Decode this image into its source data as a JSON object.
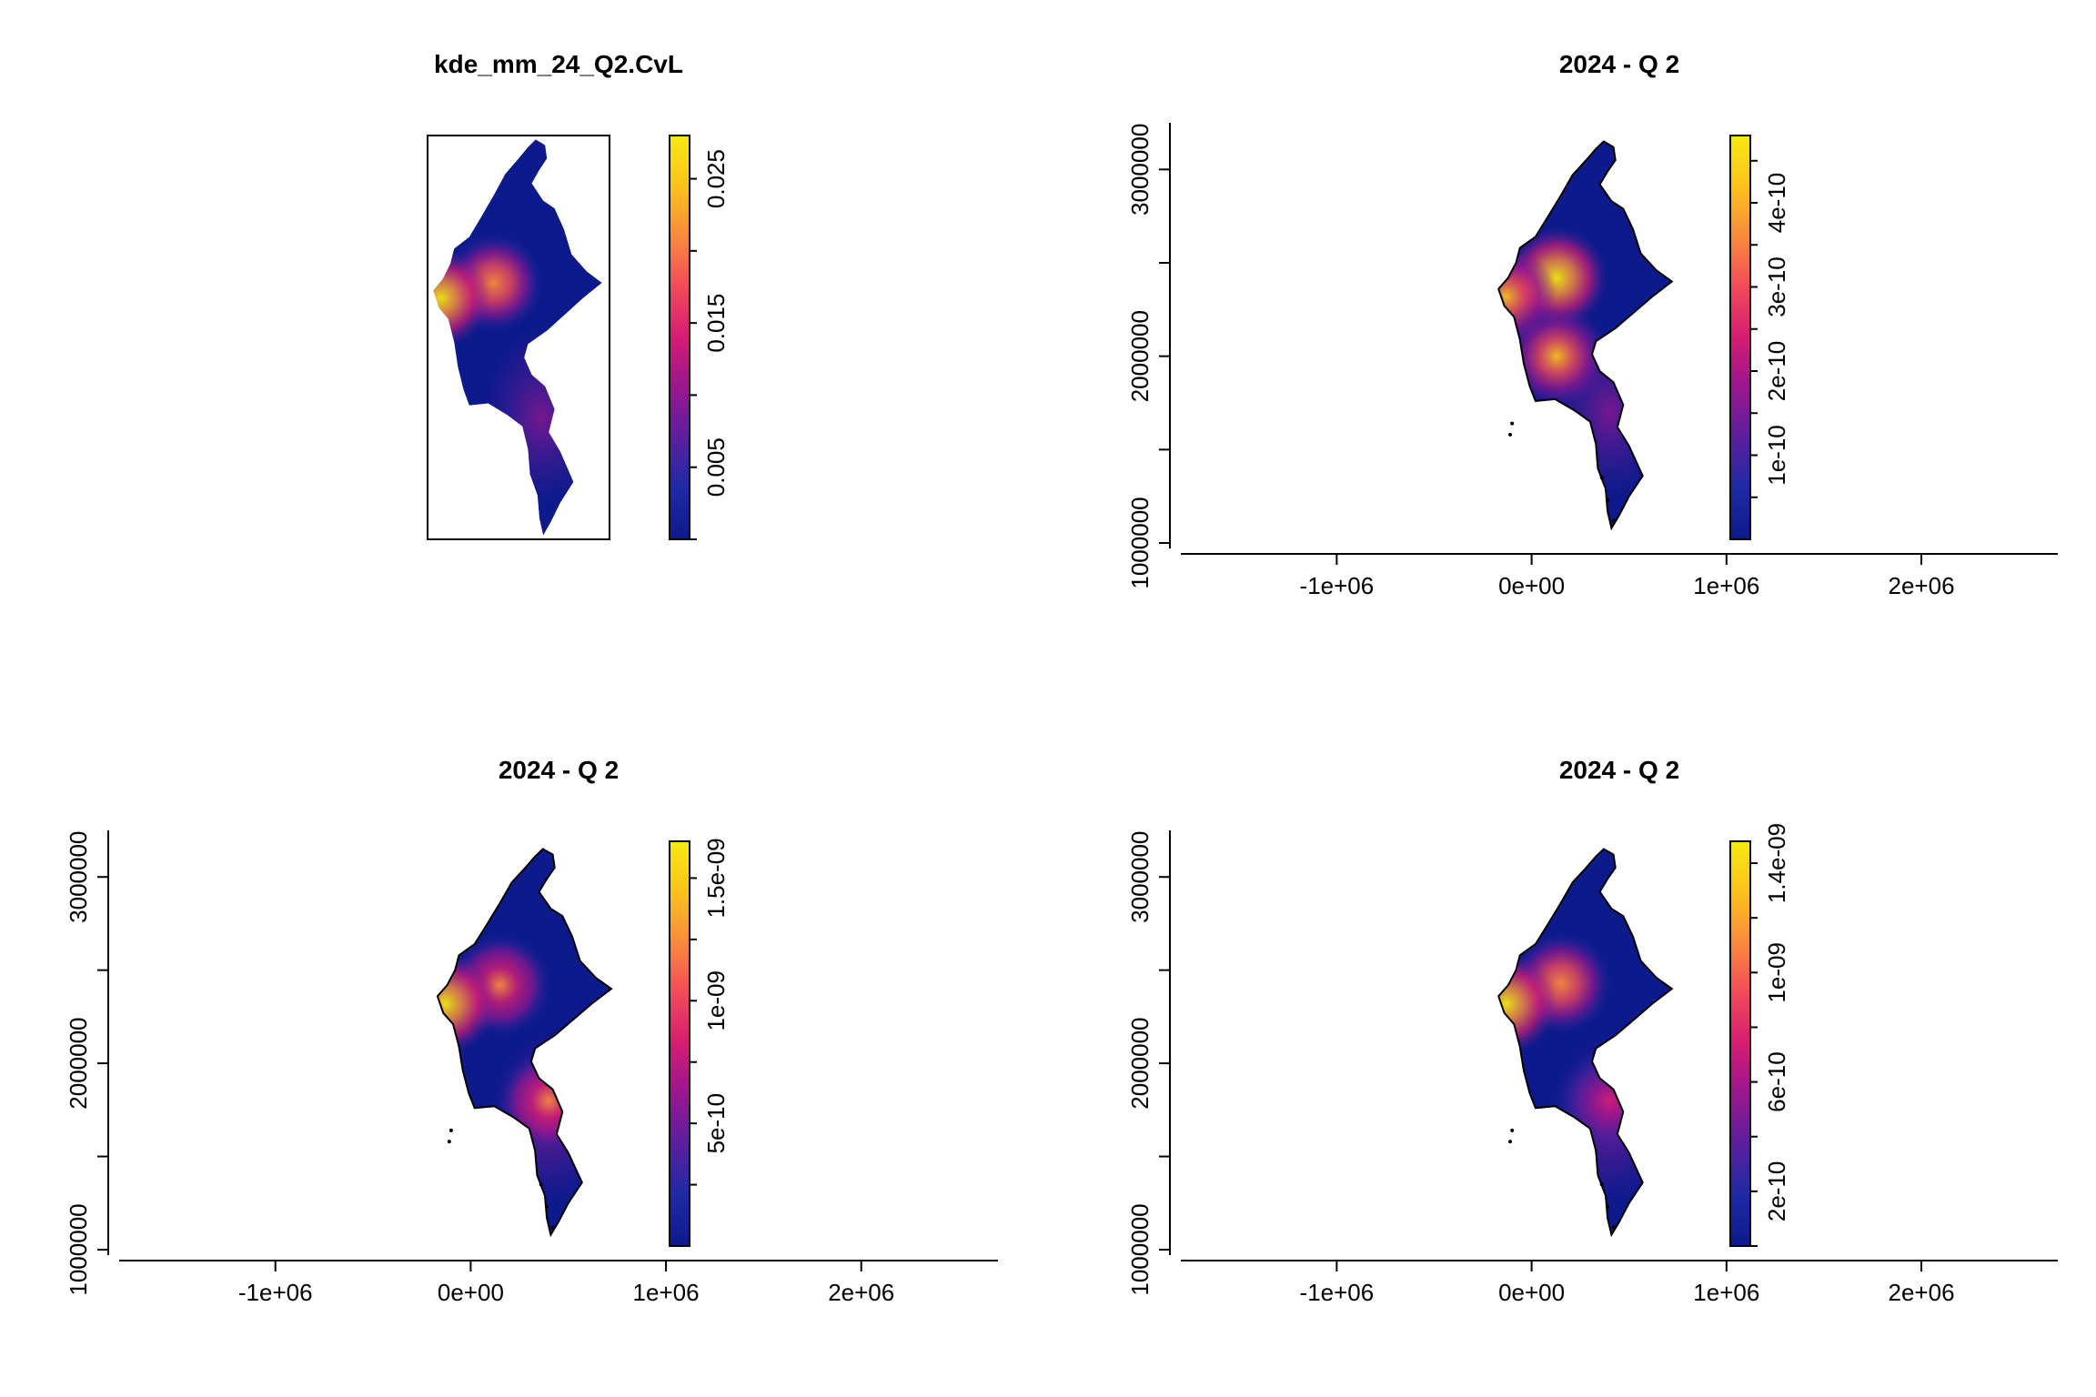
{
  "chart_data": [
    {
      "type": "heatmap",
      "title": "kde_mm_24_Q2.CvL",
      "axes_shown": false,
      "frame_box": true,
      "colorbar": {
        "range": [
          0,
          0.028
        ],
        "ticks": [
          0.005,
          0.015,
          0.025
        ],
        "tick_labels": [
          "0.005",
          "0.015",
          "0.025"
        ]
      },
      "hotspots": [
        {
          "x": 150000,
          "y": 2400000,
          "level": 0.7
        },
        {
          "x": -130000,
          "y": 2320000,
          "level": 0.95
        }
      ]
    },
    {
      "type": "heatmap",
      "title": "2024 - Q 2",
      "xlim": [
        -1800000,
        2700000
      ],
      "ylim": [
        1000000,
        3250000
      ],
      "xticks": [
        -1000000,
        0,
        1000000,
        2000000
      ],
      "xtick_labels": [
        "-1e+06",
        "0e+00",
        "1e+06",
        "2e+06"
      ],
      "yticks": [
        1000000,
        2000000,
        3000000
      ],
      "ytick_labels": [
        "1000000",
        "2000000",
        "3000000"
      ],
      "colorbar": {
        "range": [
          0,
          4.8e-10
        ],
        "ticks": [
          1e-10,
          2e-10,
          3e-10,
          4e-10
        ],
        "tick_labels": [
          "1e-10",
          "2e-10",
          "3e-10",
          "4e-10"
        ]
      },
      "hotspots": [
        {
          "x": 130000,
          "y": 2420000,
          "level": 1.0
        },
        {
          "x": 130000,
          "y": 2000000,
          "level": 0.75
        },
        {
          "x": -130000,
          "y": 2320000,
          "level": 0.8
        }
      ]
    },
    {
      "type": "heatmap",
      "title": "2024 - Q 2",
      "xlim": [
        -1800000,
        2700000
      ],
      "ylim": [
        1000000,
        3250000
      ],
      "xticks": [
        -1000000,
        0,
        1000000,
        2000000
      ],
      "xtick_labels": [
        "-1e+06",
        "0e+00",
        "1e+06",
        "2e+06"
      ],
      "yticks": [
        1000000,
        2000000,
        3000000
      ],
      "ytick_labels": [
        "1000000",
        "2000000",
        "3000000"
      ],
      "colorbar": {
        "range": [
          0,
          1.65e-09
        ],
        "ticks": [
          5e-10,
          1e-09,
          1.5e-09
        ],
        "tick_labels": [
          "5e-10",
          "1e-09",
          "1.5e-09"
        ]
      },
      "hotspots": [
        {
          "x": 150000,
          "y": 2420000,
          "level": 0.65
        },
        {
          "x": -130000,
          "y": 2320000,
          "level": 0.95
        },
        {
          "x": 400000,
          "y": 1800000,
          "level": 0.6
        }
      ]
    },
    {
      "type": "heatmap",
      "title": "2024 - Q 2",
      "xlim": [
        -1800000,
        2700000
      ],
      "ylim": [
        1000000,
        3250000
      ],
      "xticks": [
        -1000000,
        0,
        1000000,
        2000000
      ],
      "xtick_labels": [
        "-1e+06",
        "0e+00",
        "1e+06",
        "2e+06"
      ],
      "yticks": [
        1000000,
        2000000,
        3000000
      ],
      "ytick_labels": [
        "1000000",
        "2000000",
        "3000000"
      ],
      "colorbar": {
        "range": [
          0,
          1.48e-09
        ],
        "ticks": [
          2e-10,
          6e-10,
          1e-09,
          1.4e-09
        ],
        "tick_labels": [
          "2e-10",
          "6e-10",
          "1e-09",
          "1.4e-09"
        ]
      },
      "hotspots": [
        {
          "x": 150000,
          "y": 2430000,
          "level": 0.7
        },
        {
          "x": -130000,
          "y": 2320000,
          "level": 0.95
        },
        {
          "x": 400000,
          "y": 1800000,
          "level": 0.45
        }
      ]
    }
  ],
  "palette": [
    "#0d1a8c",
    "#1d2aa5",
    "#5a1f9e",
    "#98178f",
    "#d51c73",
    "#f24a5a",
    "#f98a3c",
    "#fcc21c",
    "#f5ea12"
  ]
}
